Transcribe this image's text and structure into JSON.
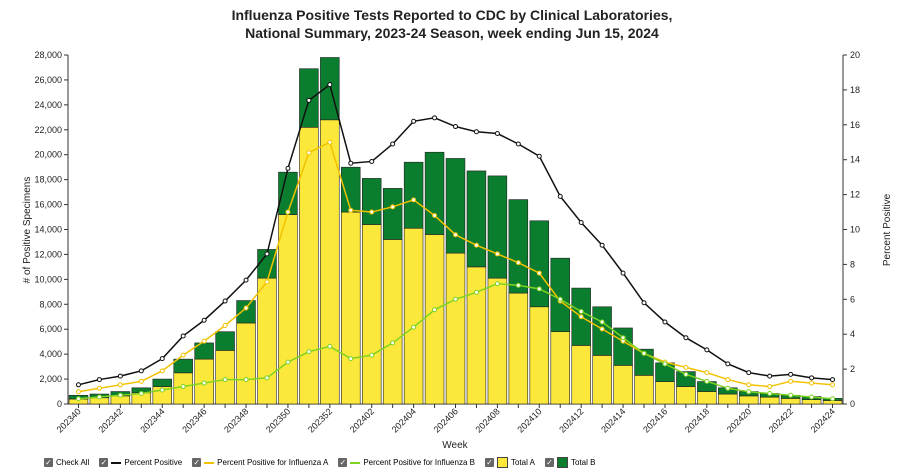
{
  "chart_data": {
    "type": "bar",
    "title": [
      "Influenza Positive Tests Reported to CDC by Clinical Laboratories,",
      "National Summary, 2023-24 Season, week ending Jun 15, 2024"
    ],
    "x_label": "Week",
    "y_label": "# of Positive Specimens",
    "y2_label": "Percent Positive",
    "check_all": "Check All",
    "categories": [
      "202340",
      null,
      "202342",
      null,
      "202344",
      null,
      "202346",
      null,
      "202348",
      null,
      "202350",
      null,
      "202352",
      null,
      "202402",
      null,
      "202404",
      null,
      "202406",
      null,
      "202408",
      null,
      "202410",
      null,
      "202412",
      null,
      "202414",
      null,
      "202416",
      null,
      "202418",
      null,
      "202420",
      null,
      "202422",
      null,
      "202424"
    ],
    "ylim": [
      0,
      28000
    ],
    "yticks": [
      0,
      {
        "value": 2000,
        "label": "2,000"
      },
      {
        "value": 4000,
        "label": "4,000"
      },
      {
        "value": 6000,
        "label": "6,000"
      },
      {
        "value": 8000,
        "label": "8,000"
      },
      {
        "value": 10000,
        "label": "10,000"
      },
      {
        "value": 12000,
        "label": "12,000"
      },
      {
        "value": 14000,
        "label": "14,000"
      },
      {
        "value": 16000,
        "label": "16,000"
      },
      {
        "value": 18000,
        "label": "18,000"
      },
      {
        "value": 20000,
        "label": "20,000"
      },
      {
        "value": 22000,
        "label": "22,000"
      },
      {
        "value": 24000,
        "label": "24,000"
      },
      {
        "value": 26000,
        "label": "26,000"
      },
      {
        "value": 28000,
        "label": "28,000"
      }
    ],
    "y2lim": [
      0,
      20
    ],
    "y2ticks": [
      0,
      2,
      4,
      6,
      8,
      10,
      12,
      14,
      16,
      18,
      20
    ],
    "series": [
      {
        "name": "Percent Positive",
        "type": "line",
        "axis": "y2",
        "color": "#111111",
        "values": [
          1.1,
          1.4,
          1.6,
          1.9,
          2.6,
          3.9,
          4.8,
          5.9,
          7.1,
          8.6,
          13.5,
          17.4,
          18.3,
          13.8,
          13.9,
          14.9,
          16.2,
          16.4,
          15.9,
          15.6,
          15.5,
          14.9,
          14.2,
          11.9,
          10.4,
          9.1,
          7.5,
          5.8,
          4.7,
          3.8,
          3.1,
          2.3,
          1.8,
          1.6,
          1.7,
          1.5,
          1.4
        ]
      },
      {
        "name": "Percent Positive for Influenza A",
        "type": "line",
        "axis": "y2",
        "color": "#f2c200",
        "values": [
          0.7,
          0.9,
          1.1,
          1.3,
          1.9,
          2.8,
          3.6,
          4.5,
          5.5,
          7.0,
          11.0,
          14.4,
          15.0,
          11.1,
          11.0,
          11.3,
          11.7,
          10.8,
          9.7,
          9.1,
          8.6,
          8.1,
          7.5,
          5.9,
          5.0,
          4.3,
          3.6,
          2.9,
          2.4,
          2.1,
          1.8,
          1.4,
          1.1,
          1.0,
          1.3,
          1.2,
          1.1
        ]
      },
      {
        "name": "Percent Positive for Influenza B",
        "type": "line",
        "axis": "y2",
        "color": "#7ed321",
        "values": [
          0.3,
          0.4,
          0.5,
          0.6,
          0.8,
          1.0,
          1.2,
          1.4,
          1.4,
          1.5,
          2.4,
          3.0,
          3.3,
          2.6,
          2.8,
          3.5,
          4.4,
          5.4,
          6.0,
          6.4,
          6.9,
          6.8,
          6.6,
          6.0,
          5.3,
          4.7,
          3.8,
          2.9,
          2.3,
          1.7,
          1.3,
          0.9,
          0.7,
          0.6,
          0.5,
          0.4,
          0.3
        ]
      },
      {
        "name": "Total A",
        "type": "bar",
        "color": "#fbe83b",
        "values": [
          400,
          500,
          650,
          900,
          1400,
          2500,
          3600,
          4300,
          6500,
          10100,
          15200,
          22200,
          22800,
          15400,
          14400,
          13200,
          14100,
          13600,
          12100,
          11000,
          10100,
          8900,
          7800,
          5800,
          4700,
          3900,
          3100,
          2300,
          1800,
          1400,
          1000,
          800,
          650,
          550,
          450,
          350,
          280
        ]
      },
      {
        "name": "Total B",
        "type": "bar",
        "color": "#0b7d2e",
        "values": [
          300,
          300,
          350,
          400,
          600,
          1100,
          1300,
          1500,
          1800,
          2300,
          3400,
          4700,
          5000,
          3600,
          3700,
          4100,
          5300,
          6600,
          7600,
          7700,
          8200,
          7500,
          6900,
          5900,
          4600,
          3900,
          3000,
          2100,
          1500,
          1200,
          800,
          500,
          350,
          300,
          250,
          250,
          170
        ]
      }
    ]
  }
}
